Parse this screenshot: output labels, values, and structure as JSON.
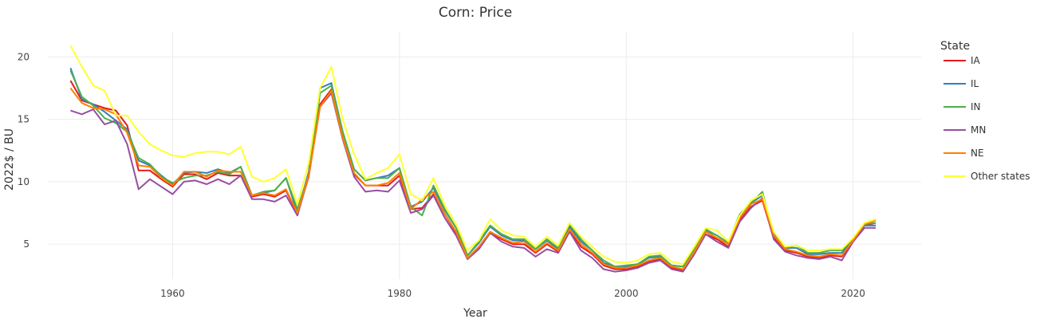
{
  "chart_data": {
    "type": "line",
    "title": "Corn: Price",
    "xlabel": "Year",
    "ylabel": "2022$ / BU",
    "xlim": [
      1949,
      2026
    ],
    "ylim": [
      2.2,
      22
    ],
    "x_ticks": [
      1960,
      1980,
      2000,
      2020
    ],
    "y_ticks": [
      5,
      10,
      15,
      20
    ],
    "grid": true,
    "legend": {
      "title": "State",
      "placement": "right"
    },
    "x": [
      1951,
      1952,
      1953,
      1954,
      1955,
      1956,
      1957,
      1958,
      1959,
      1960,
      1961,
      1962,
      1963,
      1964,
      1965,
      1966,
      1967,
      1968,
      1969,
      1970,
      1971,
      1972,
      1973,
      1974,
      1975,
      1976,
      1977,
      1978,
      1979,
      1980,
      1981,
      1982,
      1983,
      1984,
      1985,
      1986,
      1987,
      1988,
      1989,
      1990,
      1991,
      1992,
      1993,
      1994,
      1995,
      1996,
      1997,
      1998,
      1999,
      2000,
      2001,
      2002,
      2003,
      2004,
      2005,
      2006,
      2007,
      2008,
      2009,
      2010,
      2011,
      2012,
      2013,
      2014,
      2015,
      2016,
      2017,
      2018,
      2019,
      2020,
      2021,
      2022
    ],
    "series": [
      {
        "name": "IA",
        "color": "#e41a1c",
        "values": [
          18.1,
          16.5,
          16.2,
          15.9,
          15.7,
          14.5,
          10.9,
          10.9,
          10.2,
          9.6,
          10.6,
          10.6,
          10.2,
          10.7,
          10.5,
          10.5,
          8.8,
          9.0,
          8.8,
          9.3,
          7.4,
          10.4,
          16.2,
          17.4,
          13.5,
          10.6,
          9.7,
          9.7,
          9.7,
          10.5,
          7.8,
          7.9,
          9.0,
          7.4,
          5.9,
          3.8,
          4.7,
          5.9,
          5.4,
          5.0,
          5.0,
          4.3,
          5.0,
          4.4,
          6.1,
          4.8,
          4.2,
          3.3,
          3.0,
          3.0,
          3.2,
          3.6,
          3.8,
          3.1,
          2.9,
          4.3,
          5.8,
          5.4,
          4.8,
          7.0,
          8.0,
          8.5,
          5.5,
          4.5,
          4.3,
          4.0,
          3.9,
          4.1,
          4.0,
          5.2,
          6.5,
          6.7
        ]
      },
      {
        "name": "IL",
        "color": "#377eb8",
        "values": [
          19.1,
          16.6,
          16.2,
          15.6,
          14.9,
          14.2,
          11.7,
          11.3,
          10.5,
          9.8,
          10.7,
          10.8,
          10.7,
          11.0,
          10.7,
          11.2,
          8.9,
          9.1,
          9.3,
          10.3,
          7.5,
          10.8,
          17.5,
          17.9,
          14.0,
          11.0,
          10.1,
          10.3,
          10.5,
          11.1,
          8.0,
          8.4,
          9.5,
          7.7,
          6.3,
          4.1,
          5.1,
          6.4,
          5.7,
          5.3,
          5.3,
          4.6,
          5.3,
          4.6,
          6.4,
          5.2,
          4.5,
          3.5,
          3.2,
          3.2,
          3.4,
          3.9,
          4.0,
          3.3,
          3.2,
          4.6,
          6.1,
          5.7,
          5.1,
          7.3,
          8.3,
          8.9,
          5.8,
          4.7,
          4.7,
          4.2,
          4.2,
          4.3,
          4.3,
          5.4,
          6.5,
          6.5
        ]
      },
      {
        "name": "IN",
        "color": "#4daf4a",
        "values": [
          18.9,
          16.8,
          16.1,
          15.1,
          14.7,
          14.0,
          11.9,
          11.4,
          10.4,
          9.9,
          10.3,
          10.5,
          10.5,
          10.8,
          10.6,
          11.2,
          8.9,
          9.2,
          9.3,
          10.3,
          7.8,
          10.6,
          17.1,
          17.7,
          14.0,
          11.0,
          10.1,
          10.3,
          10.3,
          11.1,
          8.0,
          7.3,
          9.7,
          7.8,
          6.3,
          4.1,
          5.2,
          6.5,
          5.8,
          5.4,
          5.4,
          4.6,
          5.4,
          4.7,
          6.6,
          5.4,
          4.5,
          3.7,
          3.2,
          3.3,
          3.4,
          4.0,
          4.1,
          3.3,
          3.2,
          4.6,
          6.2,
          5.7,
          5.1,
          7.4,
          8.3,
          9.2,
          5.7,
          4.7,
          4.9,
          4.3,
          4.3,
          4.5,
          4.5,
          5.4,
          6.6,
          6.7
        ]
      },
      {
        "name": "MN",
        "color": "#984ea3",
        "values": [
          15.7,
          15.4,
          15.8,
          14.6,
          14.9,
          13.0,
          9.4,
          10.2,
          9.6,
          9.0,
          10.0,
          10.1,
          9.8,
          10.2,
          9.8,
          10.5,
          8.6,
          8.6,
          8.4,
          8.9,
          7.3,
          10.5,
          16.0,
          17.1,
          13.4,
          10.4,
          9.2,
          9.3,
          9.2,
          10.1,
          7.5,
          7.8,
          8.9,
          7.1,
          5.7,
          3.8,
          4.6,
          5.9,
          5.2,
          4.8,
          4.7,
          4.0,
          4.6,
          4.3,
          6.0,
          4.5,
          3.9,
          3.0,
          2.8,
          2.9,
          3.1,
          3.5,
          3.7,
          3.0,
          2.8,
          4.2,
          5.8,
          5.2,
          4.7,
          6.8,
          7.9,
          8.7,
          5.4,
          4.4,
          4.1,
          3.9,
          3.8,
          4.0,
          3.7,
          5.2,
          6.3,
          6.3
        ]
      },
      {
        "name": "NE",
        "color": "#ff7f00",
        "values": [
          17.5,
          16.3,
          15.9,
          15.8,
          15.4,
          13.9,
          11.3,
          11.2,
          10.3,
          9.7,
          10.8,
          10.8,
          10.4,
          10.9,
          10.8,
          10.8,
          8.9,
          9.1,
          8.9,
          9.4,
          7.5,
          10.5,
          16.0,
          17.3,
          13.5,
          10.7,
          9.7,
          9.7,
          9.9,
          10.7,
          7.8,
          8.6,
          9.2,
          7.4,
          6.0,
          3.9,
          4.8,
          6.0,
          5.5,
          5.1,
          5.2,
          4.4,
          5.1,
          4.5,
          6.2,
          5.0,
          4.3,
          3.4,
          3.1,
          3.1,
          3.3,
          3.7,
          3.9,
          3.2,
          3.0,
          4.4,
          6.0,
          5.5,
          5.0,
          7.1,
          8.2,
          8.6,
          5.7,
          4.6,
          4.4,
          4.1,
          4.0,
          4.2,
          4.1,
          5.3,
          6.6,
          6.9
        ]
      },
      {
        "name": "Other states",
        "color": "#ffff33",
        "values": [
          20.9,
          19.2,
          17.7,
          17.3,
          15.3,
          15.3,
          14.0,
          13.0,
          12.5,
          12.1,
          12.0,
          12.3,
          12.4,
          12.4,
          12.2,
          12.8,
          10.4,
          10.0,
          10.3,
          11.0,
          8.2,
          11.5,
          17.5,
          19.2,
          15.0,
          12.2,
          10.2,
          10.7,
          11.1,
          12.2,
          9.0,
          8.5,
          10.3,
          8.1,
          6.6,
          4.5,
          5.3,
          7.0,
          6.1,
          5.7,
          5.6,
          4.8,
          5.6,
          4.9,
          6.7,
          5.6,
          4.8,
          4.0,
          3.6,
          3.5,
          3.7,
          4.2,
          4.3,
          3.6,
          3.4,
          4.8,
          6.3,
          6.1,
          5.2,
          7.3,
          8.5,
          9.0,
          6.0,
          4.8,
          4.9,
          4.5,
          4.5,
          4.6,
          4.6,
          5.5,
          6.7,
          7.0
        ]
      }
    ]
  }
}
